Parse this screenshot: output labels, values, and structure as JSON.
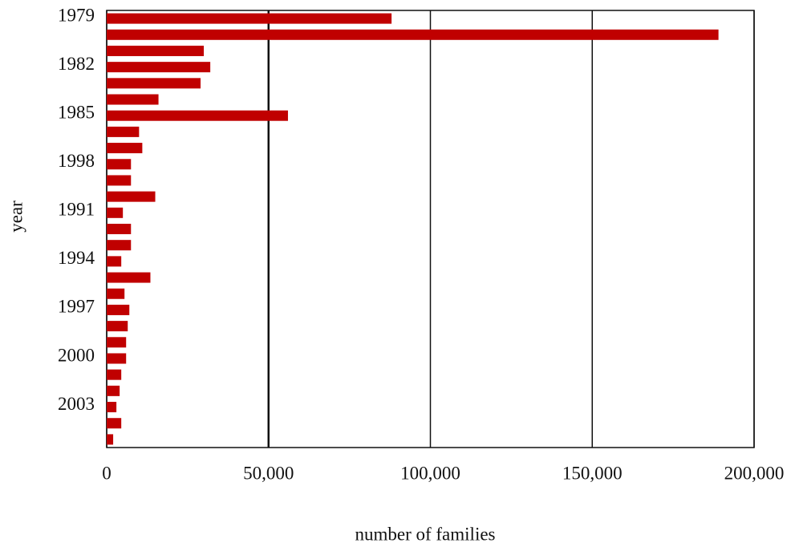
{
  "chart_data": {
    "type": "bar",
    "orientation": "horizontal",
    "x_label": "number of families",
    "y_label": "year",
    "categories": [
      "1979",
      null,
      null,
      "1982",
      null,
      null,
      "1985",
      null,
      null,
      "1998",
      null,
      null,
      "1991",
      null,
      null,
      "1994",
      null,
      null,
      "1997",
      null,
      null,
      "2000",
      null,
      null,
      "2003",
      null,
      null
    ],
    "values": [
      88000,
      189000,
      30000,
      32000,
      29000,
      16000,
      56000,
      10000,
      11000,
      7500,
      7500,
      15000,
      5000,
      7500,
      7500,
      4500,
      13500,
      5500,
      7000,
      6500,
      6000,
      6000,
      4500,
      4000,
      3000,
      4500,
      2000
    ],
    "color": "#c00000",
    "xlim": [
      0,
      200000
    ],
    "xticks": [
      0,
      {
        "value": 50000,
        "label": "50,000"
      },
      {
        "value": 100000,
        "label": "100,000"
      },
      {
        "value": 150000,
        "label": "150,000"
      },
      {
        "value": 200000,
        "label": "200,000"
      }
    ],
    "grid": true
  }
}
